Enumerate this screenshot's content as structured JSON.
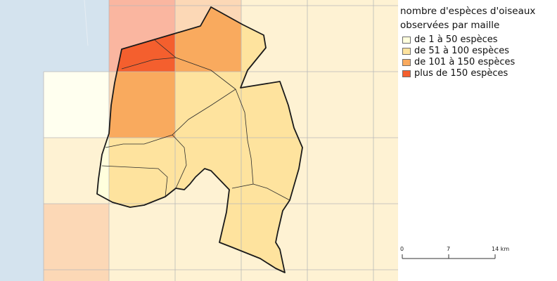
{
  "legend": {
    "title_line1": "nombre d'espèces d'oiseaux",
    "title_line2": "observées par maille",
    "classes": [
      {
        "label": "de 1 à 50 espèces",
        "color": "#ffffdd"
      },
      {
        "label": "de 51 à 100 espèces",
        "color": "#fee39e"
      },
      {
        "label": "de 101 à 150 espèces",
        "color": "#f9aa5e"
      },
      {
        "label": "plus de 150 espèces",
        "color": "#f45f2e"
      }
    ]
  },
  "scale": {
    "ticks": [
      "0",
      "7",
      "14 km"
    ]
  },
  "colors": {
    "sea": "#d4e3ee",
    "land_background": "#ffffff",
    "grid_line": "#b9b9b9",
    "boundary": "#1a1a1a"
  }
}
